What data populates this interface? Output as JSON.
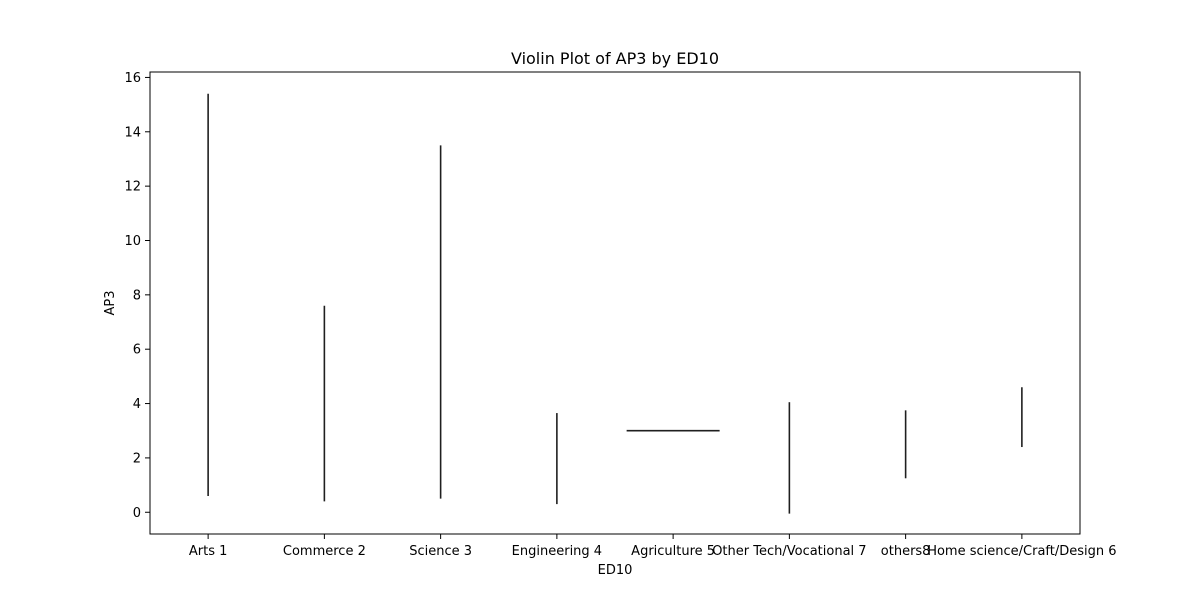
{
  "chart_data": {
    "type": "violin",
    "title": "Violin Plot of AP3 by ED10",
    "xlabel": "ED10",
    "ylabel": "AP3",
    "categories": [
      "Arts 1",
      "Commerce 2",
      "Science 3",
      "Engineering 4",
      "Agriculture 5",
      "Other Tech/Vocational 7",
      "others8",
      "Home science/Craft/Design 6"
    ],
    "ranges": [
      {
        "min": 0.6,
        "max": 15.4
      },
      {
        "min": 0.4,
        "max": 7.6
      },
      {
        "min": 0.5,
        "max": 13.5
      },
      {
        "min": 0.3,
        "max": 3.65
      },
      {
        "min": 3.0,
        "max": 3.0
      },
      {
        "min": -0.05,
        "max": 4.05
      },
      {
        "min": 1.25,
        "max": 3.75
      },
      {
        "min": 2.4,
        "max": 4.6
      }
    ],
    "ylim": [
      -0.8,
      16.2
    ],
    "yticks": [
      0,
      2,
      4,
      6,
      8,
      10,
      12,
      14,
      16
    ],
    "grid": false,
    "line_color": "#1f1f1f"
  }
}
